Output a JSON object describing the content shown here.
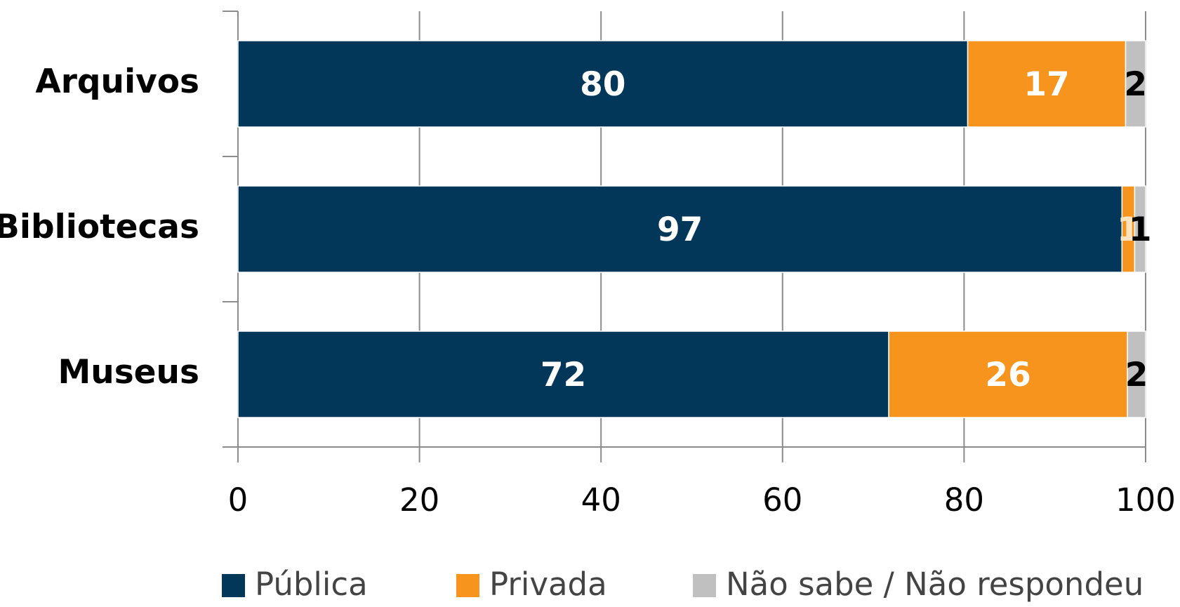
{
  "chart_data": {
    "type": "stacked_bar_horizontal",
    "categories": [
      "Arquivos",
      "Bibliotecas",
      "Museus"
    ],
    "series": [
      {
        "name": "Pública",
        "color": "#03375a",
        "values": [
          80.4,
          97.4,
          71.7
        ],
        "value_labels": [
          "80",
          "97",
          "72"
        ]
      },
      {
        "name": "Privada",
        "color": "#f7941d",
        "values": [
          17.4,
          1.4,
          26.3
        ],
        "value_labels": [
          "17",
          "1",
          "26"
        ]
      },
      {
        "name": "Não sabe / Não respondeu",
        "color": "#c0c0c0",
        "values": [
          2.2,
          1.2,
          2.0
        ],
        "value_labels": [
          "2",
          "1",
          "2"
        ]
      }
    ],
    "xlim": [
      0,
      100
    ],
    "xticks": [
      0,
      20,
      40,
      60,
      80,
      100
    ],
    "grid": true,
    "legend": "bottom"
  }
}
